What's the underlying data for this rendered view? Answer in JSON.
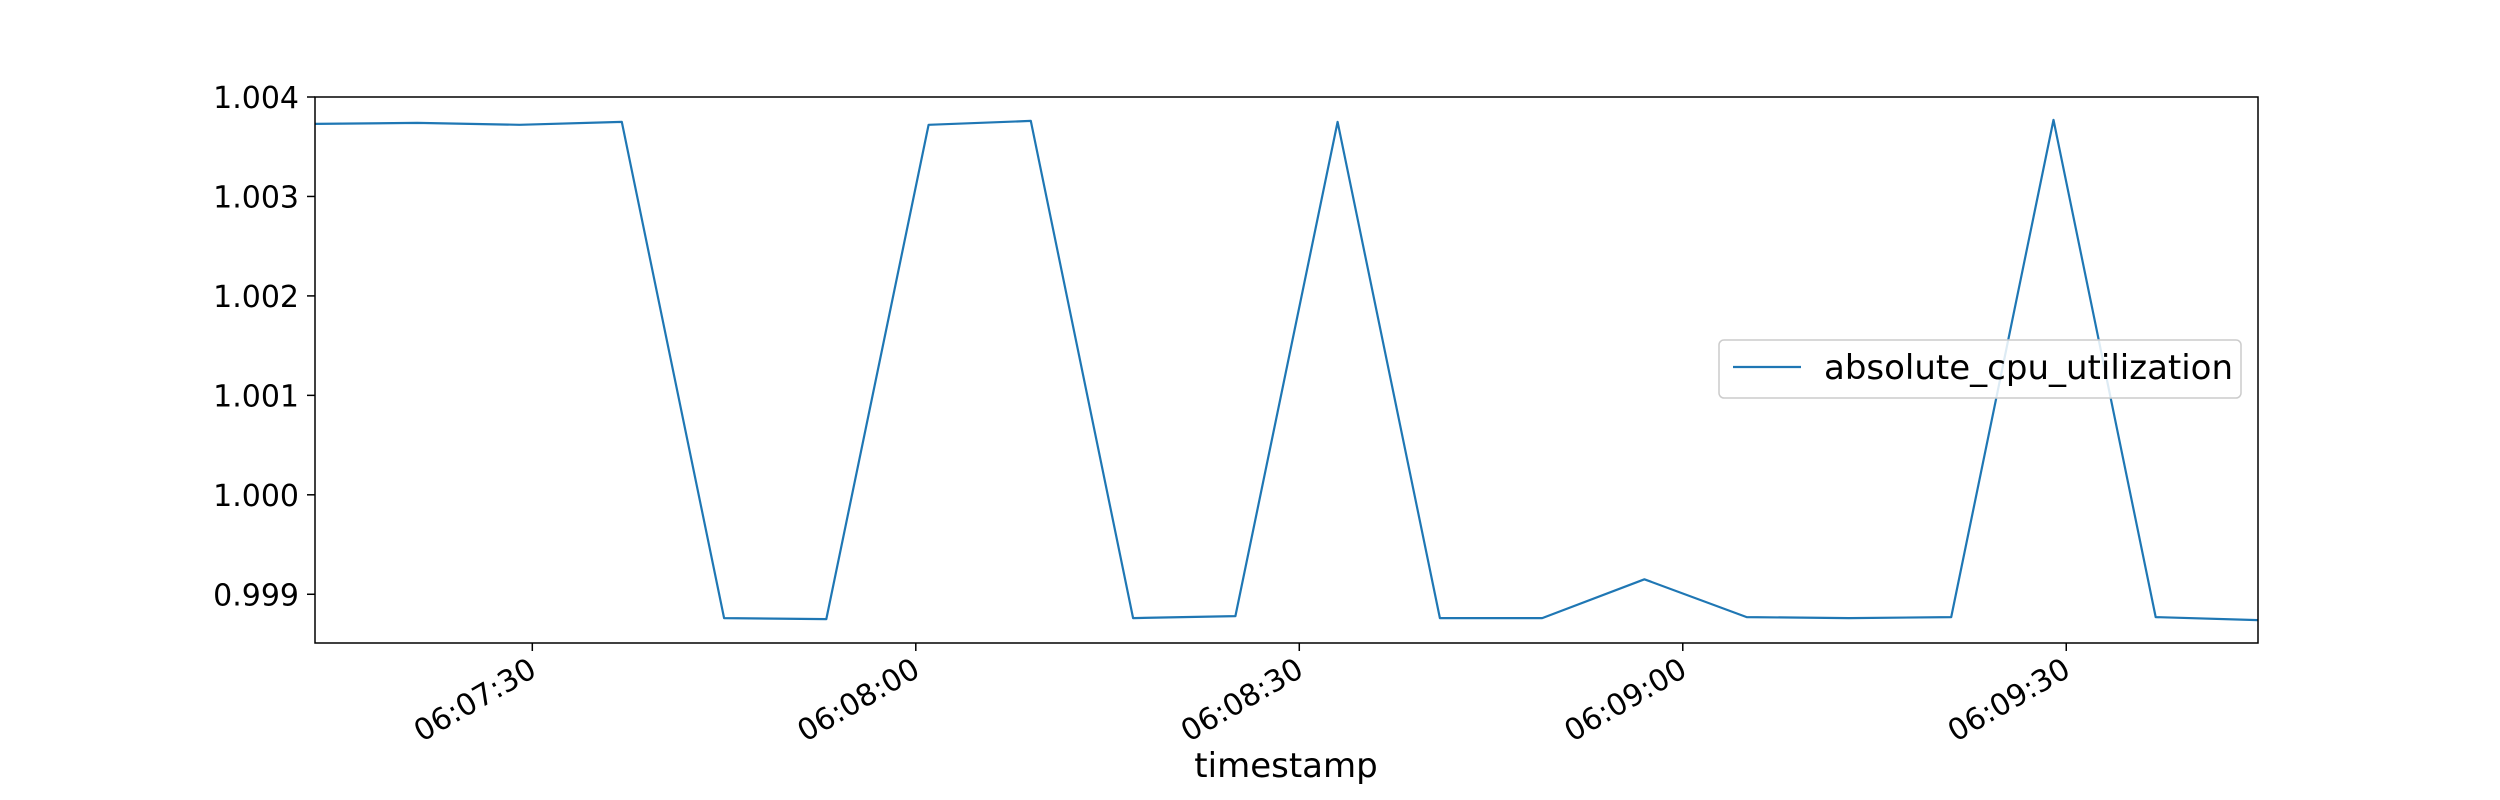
{
  "chart_data": {
    "type": "line",
    "title": "",
    "xlabel": "timestamp",
    "ylabel": "",
    "x": [
      "06:07:13",
      "06:07:21",
      "06:07:29",
      "06:07:37",
      "06:07:45",
      "06:07:53",
      "06:08:01",
      "06:08:09",
      "06:08:17",
      "06:08:25",
      "06:08:33",
      "06:08:41",
      "06:08:49",
      "06:08:57",
      "06:09:05",
      "06:09:13",
      "06:09:21",
      "06:09:29",
      "06:09:37",
      "06:09:45"
    ],
    "series": [
      {
        "name": "absolute_cpu_utilization",
        "color": "#1f77b4",
        "values": [
          1.00373,
          1.00374,
          1.00372,
          1.00375,
          0.99876,
          0.99875,
          1.00372,
          1.00376,
          0.99876,
          0.99878,
          1.00375,
          0.99876,
          0.99876,
          0.99915,
          0.99877,
          0.99876,
          0.99877,
          1.00377,
          0.99877,
          0.99874
        ]
      }
    ],
    "xlim": [
      "06:07:13",
      "06:09:45"
    ],
    "ylim": [
      0.99851,
      1.004
    ],
    "x_ticks": [
      "06:07:30",
      "06:08:00",
      "06:08:30",
      "06:09:00",
      "06:09:30"
    ],
    "y_ticks": [
      "0.999",
      "1.000",
      "1.001",
      "1.002",
      "1.003",
      "1.004"
    ],
    "grid": false,
    "legend_position": "center-right"
  }
}
